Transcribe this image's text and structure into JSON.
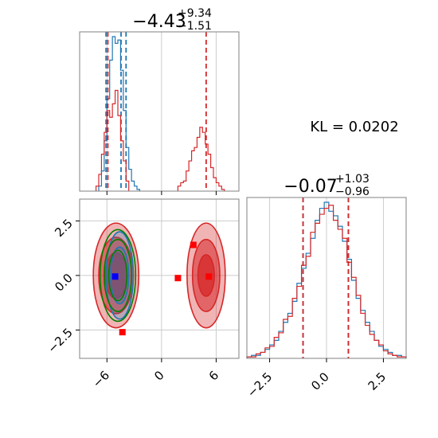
{
  "annotation": {
    "kl_text": "KL = 0.0202"
  },
  "colors": {
    "blue": "#1f77b4",
    "red": "#d62728",
    "green": "#008000",
    "grid": "#cccccc",
    "fill_red": "#e3474a",
    "fill_blue": "#6b8fd6",
    "marker_blue": "#0000ff",
    "marker_red": "#ff0000"
  },
  "chart_data": [
    {
      "type": "histogram",
      "panel": "param-0-marginal",
      "title_main": "−4.43",
      "title_sup": "+9.34",
      "title_sub": "−1.51",
      "xlim": [
        -9,
        8.5
      ],
      "grid": true,
      "series": [
        {
          "name": "",
          "color": "#1f77b4",
          "bins": [
            -6.9,
            -6.6,
            -6.3,
            -6.0,
            -5.7,
            -5.4,
            -5.1,
            -4.8,
            -4.5,
            -4.2,
            -3.9,
            -3.6,
            -3.3,
            -3.0,
            -2.7
          ],
          "counts": [
            3,
            12,
            30,
            55,
            78,
            92,
            88,
            90,
            72,
            48,
            26,
            13,
            6,
            3,
            1
          ],
          "quantile_lines": [
            -6.1,
            -4.45,
            -3.9
          ]
        },
        {
          "name": "",
          "color": "#d62728",
          "bins": [
            -7.2,
            -6.9,
            -6.6,
            -6.3,
            -6.0,
            -5.7,
            -5.4,
            -5.1,
            -4.8,
            -4.5,
            -4.2,
            -3.9,
            1.8,
            2.1,
            2.4,
            2.7,
            3.0,
            3.3,
            3.6,
            3.9,
            4.2,
            4.5,
            4.8,
            5.1,
            5.4,
            5.7,
            6.0,
            6.3,
            6.6
          ],
          "counts": [
            3,
            10,
            22,
            35,
            48,
            44,
            52,
            60,
            45,
            30,
            18,
            6,
            3,
            5,
            6,
            12,
            18,
            24,
            26,
            32,
            38,
            35,
            28,
            22,
            14,
            8,
            5,
            3,
            1
          ],
          "quantile_lines": [
            -5.9,
            4.9
          ]
        }
      ]
    },
    {
      "type": "histogram",
      "panel": "param-1-marginal",
      "title_main": "−0.07",
      "title_sup": "+1.03",
      "title_sub": "−0.96",
      "xlim": [
        -3.5,
        3.5
      ],
      "xticks": [
        -2.5,
        0.0,
        2.5
      ],
      "xtick_labels": [
        "−2.5",
        "0.0",
        "2.5"
      ],
      "grid": true,
      "series": [
        {
          "name": "",
          "color": "#1f77b4",
          "bins": [
            -3.5,
            -3.3,
            -3.1,
            -2.9,
            -2.7,
            -2.5,
            -2.3,
            -2.1,
            -1.9,
            -1.7,
            -1.5,
            -1.3,
            -1.1,
            -0.9,
            -0.7,
            -0.5,
            -0.3,
            -0.1,
            0.1,
            0.3,
            0.5,
            0.7,
            0.9,
            1.1,
            1.3,
            1.5,
            1.7,
            1.9,
            2.1,
            2.3,
            2.5,
            2.7,
            2.9,
            3.1,
            3.3
          ],
          "counts": [
            1,
            2,
            2,
            4,
            6,
            9,
            12,
            18,
            24,
            30,
            38,
            50,
            60,
            70,
            80,
            92,
            100,
            104,
            98,
            95,
            88,
            78,
            66,
            52,
            40,
            32,
            24,
            18,
            12,
            8,
            6,
            4,
            2,
            2,
            1
          ],
          "quantile_lines": [
            -1.03,
            0.96
          ]
        },
        {
          "name": "",
          "color": "#d62728",
          "bins": [
            -3.5,
            -3.3,
            -3.1,
            -2.9,
            -2.7,
            -2.5,
            -2.3,
            -2.1,
            -1.9,
            -1.7,
            -1.5,
            -1.3,
            -1.1,
            -0.9,
            -0.7,
            -0.5,
            -0.3,
            -0.1,
            0.1,
            0.3,
            0.5,
            0.7,
            0.9,
            1.1,
            1.3,
            1.5,
            1.7,
            1.9,
            2.1,
            2.3,
            2.5,
            2.7,
            2.9,
            3.1,
            3.3
          ],
          "counts": [
            1,
            1,
            3,
            4,
            7,
            8,
            14,
            17,
            26,
            28,
            40,
            48,
            62,
            68,
            84,
            90,
            96,
            100,
            102,
            92,
            86,
            80,
            64,
            54,
            42,
            30,
            22,
            16,
            12,
            9,
            5,
            3,
            2,
            1,
            1
          ],
          "quantile_lines": [
            -1.03,
            0.96
          ]
        }
      ]
    },
    {
      "type": "contour",
      "panel": "param-0-vs-param-1",
      "xlim": [
        -9,
        8.5
      ],
      "ylim": [
        -3.8,
        3.5
      ],
      "xticks": [
        -6,
        0,
        6
      ],
      "xtick_labels": [
        "−6",
        "0",
        "6"
      ],
      "yticks": [
        -2.5,
        0.0,
        2.5
      ],
      "ytick_labels": [
        "−2.5",
        "0.0",
        "2.5"
      ],
      "grid": true,
      "ellipses": [
        {
          "color": "#d62728",
          "cx": -5.0,
          "cy": 0.0,
          "rx": 2.5,
          "ry": 2.4,
          "fill_opacity": 0.35
        },
        {
          "color": "#d62728",
          "cx": -5.0,
          "cy": 0.0,
          "rx": 1.9,
          "ry": 1.75,
          "fill_opacity": 0.55
        },
        {
          "color": "#d62728",
          "cx": -5.0,
          "cy": 0.0,
          "rx": 1.2,
          "ry": 1.05,
          "fill_opacity": 0.75
        },
        {
          "color": "#d62728",
          "cx": 4.9,
          "cy": 0.0,
          "rx": 2.1,
          "ry": 2.4,
          "fill_opacity": 0.35
        },
        {
          "color": "#d62728",
          "cx": 4.9,
          "cy": 0.0,
          "rx": 1.5,
          "ry": 1.65,
          "fill_opacity": 0.55
        },
        {
          "color": "#d62728",
          "cx": 4.9,
          "cy": 0.0,
          "rx": 0.9,
          "ry": 0.95,
          "fill_opacity": 0.75
        },
        {
          "color": "#1f77b4",
          "cx": -4.6,
          "cy": 0.0,
          "rx": 1.5,
          "ry": 2.0,
          "fill_opacity": 0.25
        },
        {
          "color": "#1f77b4",
          "cx": -4.6,
          "cy": 0.0,
          "rx": 1.0,
          "ry": 1.3,
          "fill_opacity": 0.3
        },
        {
          "color": "#008000",
          "cx": -4.8,
          "cy": 0.0,
          "rx": 1.95,
          "ry": 2.1,
          "fill_opacity": 0
        },
        {
          "color": "#008000",
          "cx": -4.8,
          "cy": 0.0,
          "rx": 1.5,
          "ry": 1.65,
          "fill_opacity": 0
        },
        {
          "color": "#008000",
          "cx": -4.8,
          "cy": 0.0,
          "rx": 1.0,
          "ry": 1.15,
          "fill_opacity": 0
        }
      ],
      "markers": [
        {
          "color": "#0000ff",
          "x": -5.1,
          "y": -0.05
        },
        {
          "color": "#ff0000",
          "x": -4.3,
          "y": -2.6
        },
        {
          "color": "#ff0000",
          "x": 1.8,
          "y": -0.12
        },
        {
          "color": "#ff0000",
          "x": 3.5,
          "y": 1.4
        },
        {
          "color": "#ff0000",
          "x": 5.2,
          "y": -0.05
        }
      ]
    }
  ]
}
